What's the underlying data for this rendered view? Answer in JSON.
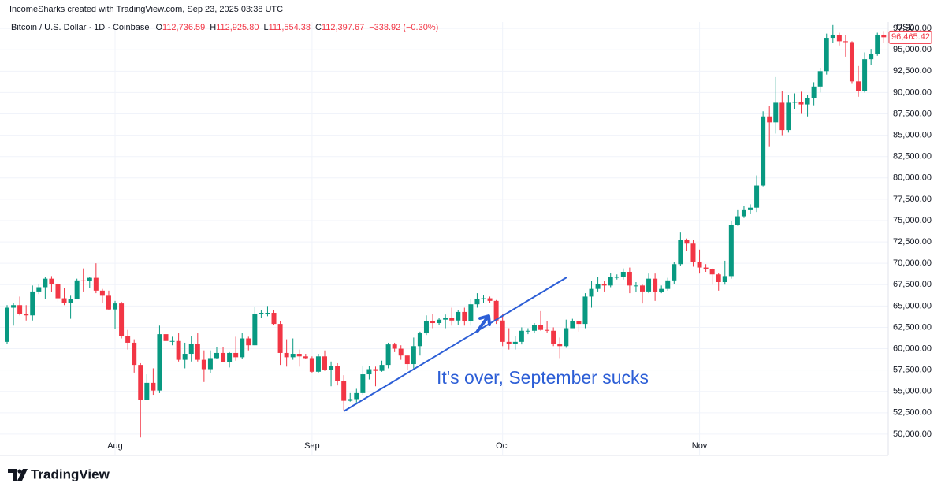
{
  "chart_data": {
    "type": "candlestick",
    "attribution": "IncomeSharks created with TradingView.com, Sep 23, 2025 03:38 UTC",
    "symbol": "Bitcoin / U.S. Dollar · 1D · Coinbase",
    "ohlc_legend": [
      {
        "key": "O",
        "value": "112,736.59"
      },
      {
        "key": "H",
        "value": "112,925.80"
      },
      {
        "key": "L",
        "value": "111,554.38"
      },
      {
        "key": "C",
        "value": "112,397.67"
      },
      {
        "key": "",
        "value": "−338.92 (−0.30%)"
      }
    ],
    "currency": "USD",
    "annotation": "It's over, September sucks",
    "watermark": "TradingView",
    "last_price_label": "96,465.42",
    "up_color": "#089981",
    "down_color": "#f23645",
    "grid": true,
    "categories": [
      null,
      null,
      null,
      null,
      null,
      null,
      null,
      null,
      null,
      null,
      null,
      null,
      null,
      null,
      null,
      null,
      null,
      "Aug",
      null,
      null,
      null,
      null,
      null,
      null,
      null,
      null,
      null,
      null,
      null,
      null,
      null,
      null,
      null,
      null,
      null,
      null,
      null,
      null,
      null,
      null,
      null,
      null,
      null,
      null,
      null,
      null,
      null,
      null,
      "Sep",
      null,
      null,
      null,
      null,
      null,
      null,
      null,
      null,
      null,
      null,
      null,
      null,
      null,
      null,
      null,
      null,
      null,
      null,
      null,
      null,
      null,
      null,
      null,
      null,
      null,
      null,
      null,
      null,
      null,
      "Oct",
      null,
      null,
      null,
      null,
      null,
      null,
      null,
      null,
      null,
      null,
      null,
      null,
      null,
      null,
      null,
      null,
      null,
      null,
      null,
      null,
      null,
      null,
      null,
      null,
      null,
      null,
      null,
      null,
      null,
      null,
      "Nov",
      null,
      null,
      null,
      null,
      null,
      null,
      null,
      null,
      null,
      null,
      null,
      null,
      null,
      null,
      null,
      null,
      null,
      null,
      null,
      null,
      null,
      null,
      null,
      null,
      null,
      null,
      null,
      null,
      null
    ],
    "open": [
      60800,
      64800,
      65100,
      64100,
      63900,
      66700,
      67200,
      68200,
      67600,
      65900,
      65400,
      65800,
      68000,
      67900,
      68300,
      66800,
      66200,
      64600,
      65300,
      61500,
      60700,
      58100,
      54000,
      56000,
      55100,
      61700,
      60900,
      60900,
      58700,
      59400,
      60600,
      58700,
      57600,
      58900,
      59500,
      58400,
      59500,
      59000,
      61200,
      60400,
      64100,
      64200,
      64200,
      62900,
      59500,
      59000,
      59400,
      59100,
      58900,
      57300,
      59100,
      57500,
      58000,
      56200,
      53900,
      54100,
      54800,
      57000,
      57600,
      57400,
      58100,
      60500,
      60000,
      59200,
      58200,
      60300,
      61800,
      63200,
      63000,
      63400,
      63600,
      63300,
      64300,
      63200,
      65200,
      65800,
      65900,
      65600,
      63300,
      60800,
      60600,
      60800,
      62100,
      62100,
      62800,
      62200,
      62100,
      60600,
      60300,
      62400,
      63200,
      62900,
      66100,
      67000,
      67600,
      67400,
      68400,
      68400,
      69000,
      67400,
      67400,
      66700,
      68200,
      66600,
      67000,
      68000,
      69900,
      72700,
      72300,
      70200,
      69500,
      69300,
      68700,
      67800,
      68500,
      74500,
      75500,
      76300,
      76500,
      79100,
      87200,
      86500,
      88800,
      85600,
      88800,
      88900,
      88600,
      89300,
      90700,
      92500,
      96400,
      96700,
      96000,
      95900,
      91300,
      90200,
      93900,
      94500,
      96700
    ],
    "high": [
      65100,
      65400,
      66100,
      65100,
      67400,
      67600,
      68400,
      68500,
      67800,
      67100,
      66200,
      68200,
      69400,
      68400,
      70000,
      67000,
      66800,
      65600,
      65500,
      62200,
      61100,
      58300,
      57000,
      57700,
      62700,
      61800,
      61400,
      61800,
      60700,
      61500,
      61800,
      59800,
      59800,
      60200,
      60200,
      59600,
      61400,
      61800,
      61400,
      64900,
      64500,
      65000,
      64500,
      63200,
      61100,
      61200,
      59900,
      59400,
      59100,
      59400,
      59800,
      58500,
      58300,
      56900,
      54800,
      55300,
      58000,
      58000,
      57900,
      58600,
      60700,
      60700,
      60400,
      59200,
      61300,
      62000,
      63900,
      64100,
      63600,
      64000,
      64800,
      64500,
      64800,
      65800,
      66500,
      66300,
      66100,
      65700,
      64100,
      62400,
      61500,
      62500,
      62400,
      63000,
      64400,
      63200,
      62500,
      61300,
      63400,
      63500,
      63300,
      66500,
      67900,
      68400,
      67900,
      68900,
      68700,
      69400,
      69500,
      67800,
      67500,
      68800,
      68800,
      67400,
      68300,
      70200,
      73600,
      72900,
      72700,
      71600,
      69900,
      69400,
      68900,
      70300,
      75000,
      76300,
      76700,
      76900,
      80300,
      87800,
      88400,
      91800,
      90200,
      89700,
      89900,
      90100,
      89700,
      91200,
      92900,
      96900,
      97900,
      97000,
      96700,
      96000,
      93100,
      94700,
      95100,
      97000,
      97200
    ],
    "low": [
      60600,
      62700,
      63900,
      63300,
      63300,
      66400,
      65800,
      66600,
      65500,
      65100,
      63500,
      65800,
      66700,
      67100,
      66500,
      65400,
      64500,
      62300,
      61200,
      59900,
      57200,
      49600,
      54000,
      54600,
      54800,
      59800,
      60400,
      58500,
      57700,
      58500,
      58500,
      56100,
      57100,
      58800,
      58400,
      57800,
      58600,
      58800,
      59800,
      60400,
      63600,
      63800,
      62800,
      58100,
      57900,
      58700,
      57900,
      58800,
      57200,
      57100,
      57400,
      55600,
      55700,
      52800,
      53800,
      53700,
      54600,
      56400,
      55600,
      57300,
      57700,
      59600,
      58700,
      57500,
      57600,
      59200,
      61600,
      62400,
      62800,
      62400,
      62700,
      62800,
      62700,
      62700,
      64800,
      65400,
      65400,
      62900,
      60300,
      59900,
      59900,
      60500,
      61700,
      61800,
      62100,
      61900,
      60300,
      58900,
      60100,
      62400,
      62000,
      62400,
      64800,
      66700,
      66700,
      67200,
      68100,
      68100,
      66500,
      66600,
      65300,
      66500,
      65600,
      66500,
      66800,
      67600,
      69700,
      71400,
      69600,
      68800,
      69000,
      67500,
      66800,
      67500,
      68200,
      74400,
      75300,
      75800,
      76000,
      79000,
      83700,
      85200,
      85000,
      85300,
      88100,
      87500,
      87200,
      88500,
      90000,
      92100,
      95800,
      95500,
      94200,
      91100,
      89500,
      90000,
      93200,
      94300,
      95800
    ],
    "close": [
      64800,
      65100,
      64100,
      63900,
      66700,
      67200,
      68200,
      67600,
      65900,
      65400,
      65800,
      68000,
      67900,
      68300,
      66800,
      66200,
      64600,
      65300,
      61500,
      60700,
      58100,
      54000,
      56000,
      55100,
      61700,
      60900,
      60900,
      58700,
      59400,
      60600,
      58700,
      57600,
      58900,
      59500,
      58400,
      59500,
      59000,
      61200,
      60400,
      64100,
      64200,
      64200,
      62900,
      59500,
      59000,
      59400,
      59100,
      58900,
      57300,
      59100,
      57500,
      58000,
      56200,
      53900,
      54100,
      54800,
      57000,
      57600,
      57400,
      58100,
      60500,
      60000,
      59200,
      58200,
      60300,
      61800,
      63200,
      63000,
      63400,
      63600,
      63300,
      64300,
      63200,
      65200,
      65800,
      65900,
      65600,
      63300,
      60800,
      60600,
      60800,
      62100,
      62100,
      62800,
      62200,
      62100,
      60600,
      60300,
      62400,
      63200,
      62900,
      66100,
      67000,
      67600,
      67400,
      68400,
      68400,
      69000,
      67400,
      67400,
      66700,
      68200,
      66600,
      67000,
      68000,
      69900,
      72700,
      72300,
      70200,
      69500,
      69300,
      68700,
      67800,
      68500,
      74500,
      75500,
      76300,
      76500,
      79100,
      87200,
      86500,
      88800,
      85600,
      88800,
      88900,
      88600,
      89300,
      90700,
      92500,
      96400,
      96700,
      96000,
      95900,
      91300,
      90200,
      93900,
      94500,
      96700,
      96465.42
    ],
    "ylim": [
      47500,
      98250
    ],
    "yticks": [
      {
        "value": 50000,
        "label": "50,000.00"
      },
      {
        "value": 52500,
        "label": "52,500.00"
      },
      {
        "value": 55000,
        "label": "55,000.00"
      },
      {
        "value": 57500,
        "label": "57,500.00"
      },
      {
        "value": 60000,
        "label": "60,000.00"
      },
      {
        "value": 62500,
        "label": "62,500.00"
      },
      {
        "value": 65000,
        "label": "65,000.00"
      },
      {
        "value": 67500,
        "label": "67,500.00"
      },
      {
        "value": 70000,
        "label": "70,000.00"
      },
      {
        "value": 72500,
        "label": "72,500.00"
      },
      {
        "value": 75000,
        "label": "75,000.00"
      },
      {
        "value": 77500,
        "label": "77,500.00"
      },
      {
        "value": 80000,
        "label": "80,000.00"
      },
      {
        "value": 82500,
        "label": "82,500.00"
      },
      {
        "value": 85000,
        "label": "85,000.00"
      },
      {
        "value": 87500,
        "label": "87,500.00"
      },
      {
        "value": 90000,
        "label": "90,000.00"
      },
      {
        "value": 92500,
        "label": "92,500.00"
      },
      {
        "value": 95000,
        "label": "95,000.00"
      },
      {
        "value": 97500,
        "label": "97,500.00"
      }
    ]
  }
}
